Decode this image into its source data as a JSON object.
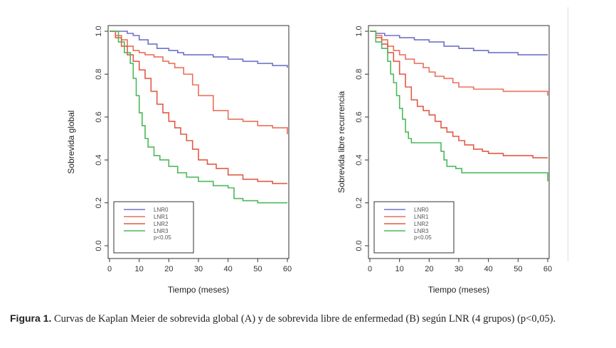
{
  "caption": {
    "label": "Figura 1.",
    "text": "Curvas de Kaplan Meier de sobrevida global (A) y de sobrevida libre de enfermedad (B) según LNR (4 grupos) (p<0,05)."
  },
  "colors": {
    "LNR0": "#7070c8",
    "LNR1": "#e8705a",
    "LNR2": "#e05a46",
    "LNR3": "#4cb85a"
  },
  "chart_data": [
    {
      "type": "line",
      "xlabel": "Tiempo (meses)",
      "ylabel": "Sobrevida global",
      "xlim": [
        0,
        60
      ],
      "ylim": [
        0,
        1
      ],
      "xticks": [
        "0",
        "10",
        "20",
        "30",
        "40",
        "50",
        "60"
      ],
      "yticks": [
        "0.0",
        "0.2",
        "0.4",
        "0.6",
        "0.8",
        "1.0"
      ],
      "legend_position": "bottom-left",
      "legend_note": "p<0.05",
      "series": [
        {
          "name": "LNR0",
          "x": [
            0,
            2,
            6,
            8,
            10,
            13,
            16,
            20,
            23,
            25,
            30,
            35,
            40,
            45,
            50,
            55,
            58,
            60
          ],
          "y": [
            1.0,
            1.0,
            0.99,
            0.98,
            0.96,
            0.94,
            0.92,
            0.91,
            0.9,
            0.89,
            0.89,
            0.88,
            0.87,
            0.86,
            0.85,
            0.84,
            0.84,
            0.83
          ]
        },
        {
          "name": "LNR1",
          "x": [
            0,
            2,
            4,
            6,
            8,
            10,
            12,
            15,
            18,
            20,
            22,
            25,
            28,
            30,
            35,
            40,
            45,
            50,
            55,
            58,
            60
          ],
          "y": [
            1.0,
            0.98,
            0.96,
            0.93,
            0.91,
            0.9,
            0.89,
            0.88,
            0.86,
            0.85,
            0.83,
            0.8,
            0.75,
            0.7,
            0.63,
            0.59,
            0.58,
            0.56,
            0.55,
            0.55,
            0.52
          ]
        },
        {
          "name": "LNR2",
          "x": [
            0,
            2,
            4,
            6,
            8,
            10,
            12,
            14,
            16,
            18,
            20,
            22,
            24,
            26,
            28,
            30,
            33,
            36,
            40,
            45,
            50,
            55,
            60
          ],
          "y": [
            1.0,
            0.97,
            0.93,
            0.89,
            0.86,
            0.82,
            0.78,
            0.72,
            0.66,
            0.62,
            0.58,
            0.55,
            0.52,
            0.49,
            0.45,
            0.4,
            0.38,
            0.36,
            0.33,
            0.31,
            0.3,
            0.29,
            0.29
          ]
        },
        {
          "name": "LNR3",
          "x": [
            0,
            3,
            5,
            7,
            8,
            9,
            10,
            11,
            12,
            13,
            15,
            17,
            20,
            23,
            26,
            30,
            35,
            40,
            42,
            45,
            50,
            55,
            60
          ],
          "y": [
            1.0,
            0.95,
            0.9,
            0.85,
            0.78,
            0.7,
            0.62,
            0.56,
            0.5,
            0.46,
            0.42,
            0.4,
            0.37,
            0.34,
            0.32,
            0.3,
            0.28,
            0.27,
            0.22,
            0.21,
            0.2,
            0.2,
            0.2
          ]
        }
      ]
    },
    {
      "type": "line",
      "xlabel": "Tiempo (meses)",
      "ylabel": "Sobrevida libre recurrencia",
      "xlim": [
        0,
        60
      ],
      "ylim": [
        0,
        1
      ],
      "xticks": [
        "0",
        "10",
        "20",
        "30",
        "40",
        "50",
        "60"
      ],
      "yticks": [
        "0.0",
        "0.2",
        "0.4",
        "0.6",
        "0.8",
        "1.0"
      ],
      "legend_position": "bottom-left",
      "legend_note": "p<0.05",
      "series": [
        {
          "name": "LNR0",
          "x": [
            0,
            2,
            5,
            10,
            15,
            20,
            25,
            30,
            35,
            40,
            45,
            50,
            55,
            60
          ],
          "y": [
            1.0,
            0.99,
            0.98,
            0.97,
            0.96,
            0.95,
            0.93,
            0.92,
            0.91,
            0.9,
            0.9,
            0.89,
            0.89,
            0.89
          ]
        },
        {
          "name": "LNR1",
          "x": [
            0,
            2,
            4,
            6,
            8,
            10,
            12,
            15,
            18,
            20,
            22,
            25,
            28,
            30,
            35,
            40,
            45,
            50,
            55,
            59,
            60
          ],
          "y": [
            1.0,
            0.98,
            0.96,
            0.93,
            0.91,
            0.89,
            0.87,
            0.85,
            0.83,
            0.81,
            0.79,
            0.78,
            0.76,
            0.74,
            0.73,
            0.73,
            0.72,
            0.72,
            0.72,
            0.72,
            0.7
          ]
        },
        {
          "name": "LNR2",
          "x": [
            0,
            2,
            4,
            6,
            8,
            10,
            12,
            14,
            16,
            18,
            20,
            22,
            24,
            26,
            28,
            30,
            32,
            35,
            38,
            40,
            45,
            50,
            55,
            60
          ],
          "y": [
            1.0,
            0.97,
            0.94,
            0.9,
            0.86,
            0.8,
            0.74,
            0.68,
            0.65,
            0.63,
            0.61,
            0.58,
            0.55,
            0.53,
            0.51,
            0.49,
            0.47,
            0.45,
            0.44,
            0.43,
            0.42,
            0.42,
            0.41,
            0.41
          ]
        },
        {
          "name": "LNR3",
          "x": [
            0,
            2,
            4,
            6,
            7,
            8,
            9,
            10,
            11,
            12,
            13,
            14,
            20,
            24,
            25,
            26,
            29,
            31,
            35,
            40,
            45,
            50,
            55,
            60
          ],
          "y": [
            1.0,
            0.95,
            0.92,
            0.86,
            0.8,
            0.76,
            0.7,
            0.64,
            0.59,
            0.53,
            0.5,
            0.48,
            0.48,
            0.44,
            0.4,
            0.37,
            0.36,
            0.34,
            0.34,
            0.34,
            0.34,
            0.34,
            0.34,
            0.3
          ]
        }
      ]
    }
  ]
}
